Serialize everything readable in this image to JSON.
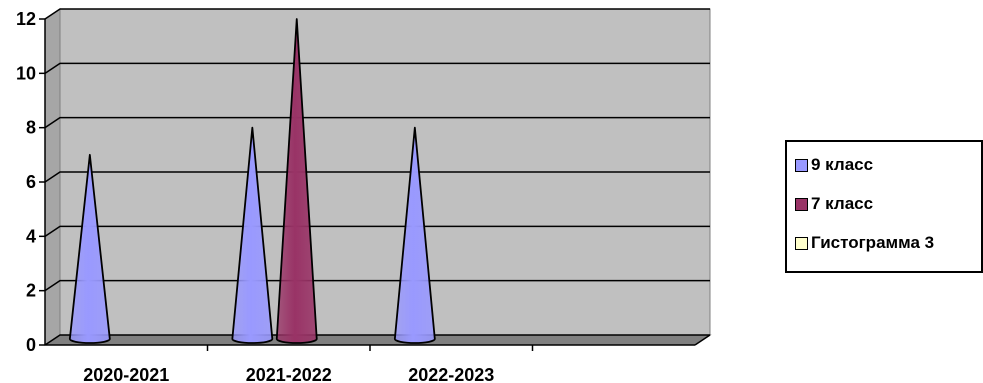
{
  "chart_data": {
    "type": "bar",
    "style": "cone",
    "categories": [
      "2020-2021",
      "2021-2022",
      "2022-2023",
      ""
    ],
    "series": [
      {
        "name": "9 класс",
        "values": [
          7,
          8,
          8,
          0
        ],
        "color": "#9999ff"
      },
      {
        "name": "7 класс",
        "values": [
          0,
          12,
          0,
          0
        ],
        "color": "#993366"
      },
      {
        "name": "Гистограмма 3",
        "values": [
          0,
          0,
          0,
          0
        ],
        "color": "#ffffcc"
      }
    ],
    "y_ticks": [
      "0",
      "2",
      "4",
      "6",
      "8",
      "10",
      "12"
    ],
    "ylim": [
      0,
      12
    ],
    "grid": true,
    "legend_position": "right",
    "wall_color": "#c0c0c0",
    "floor_color": "#808080"
  }
}
